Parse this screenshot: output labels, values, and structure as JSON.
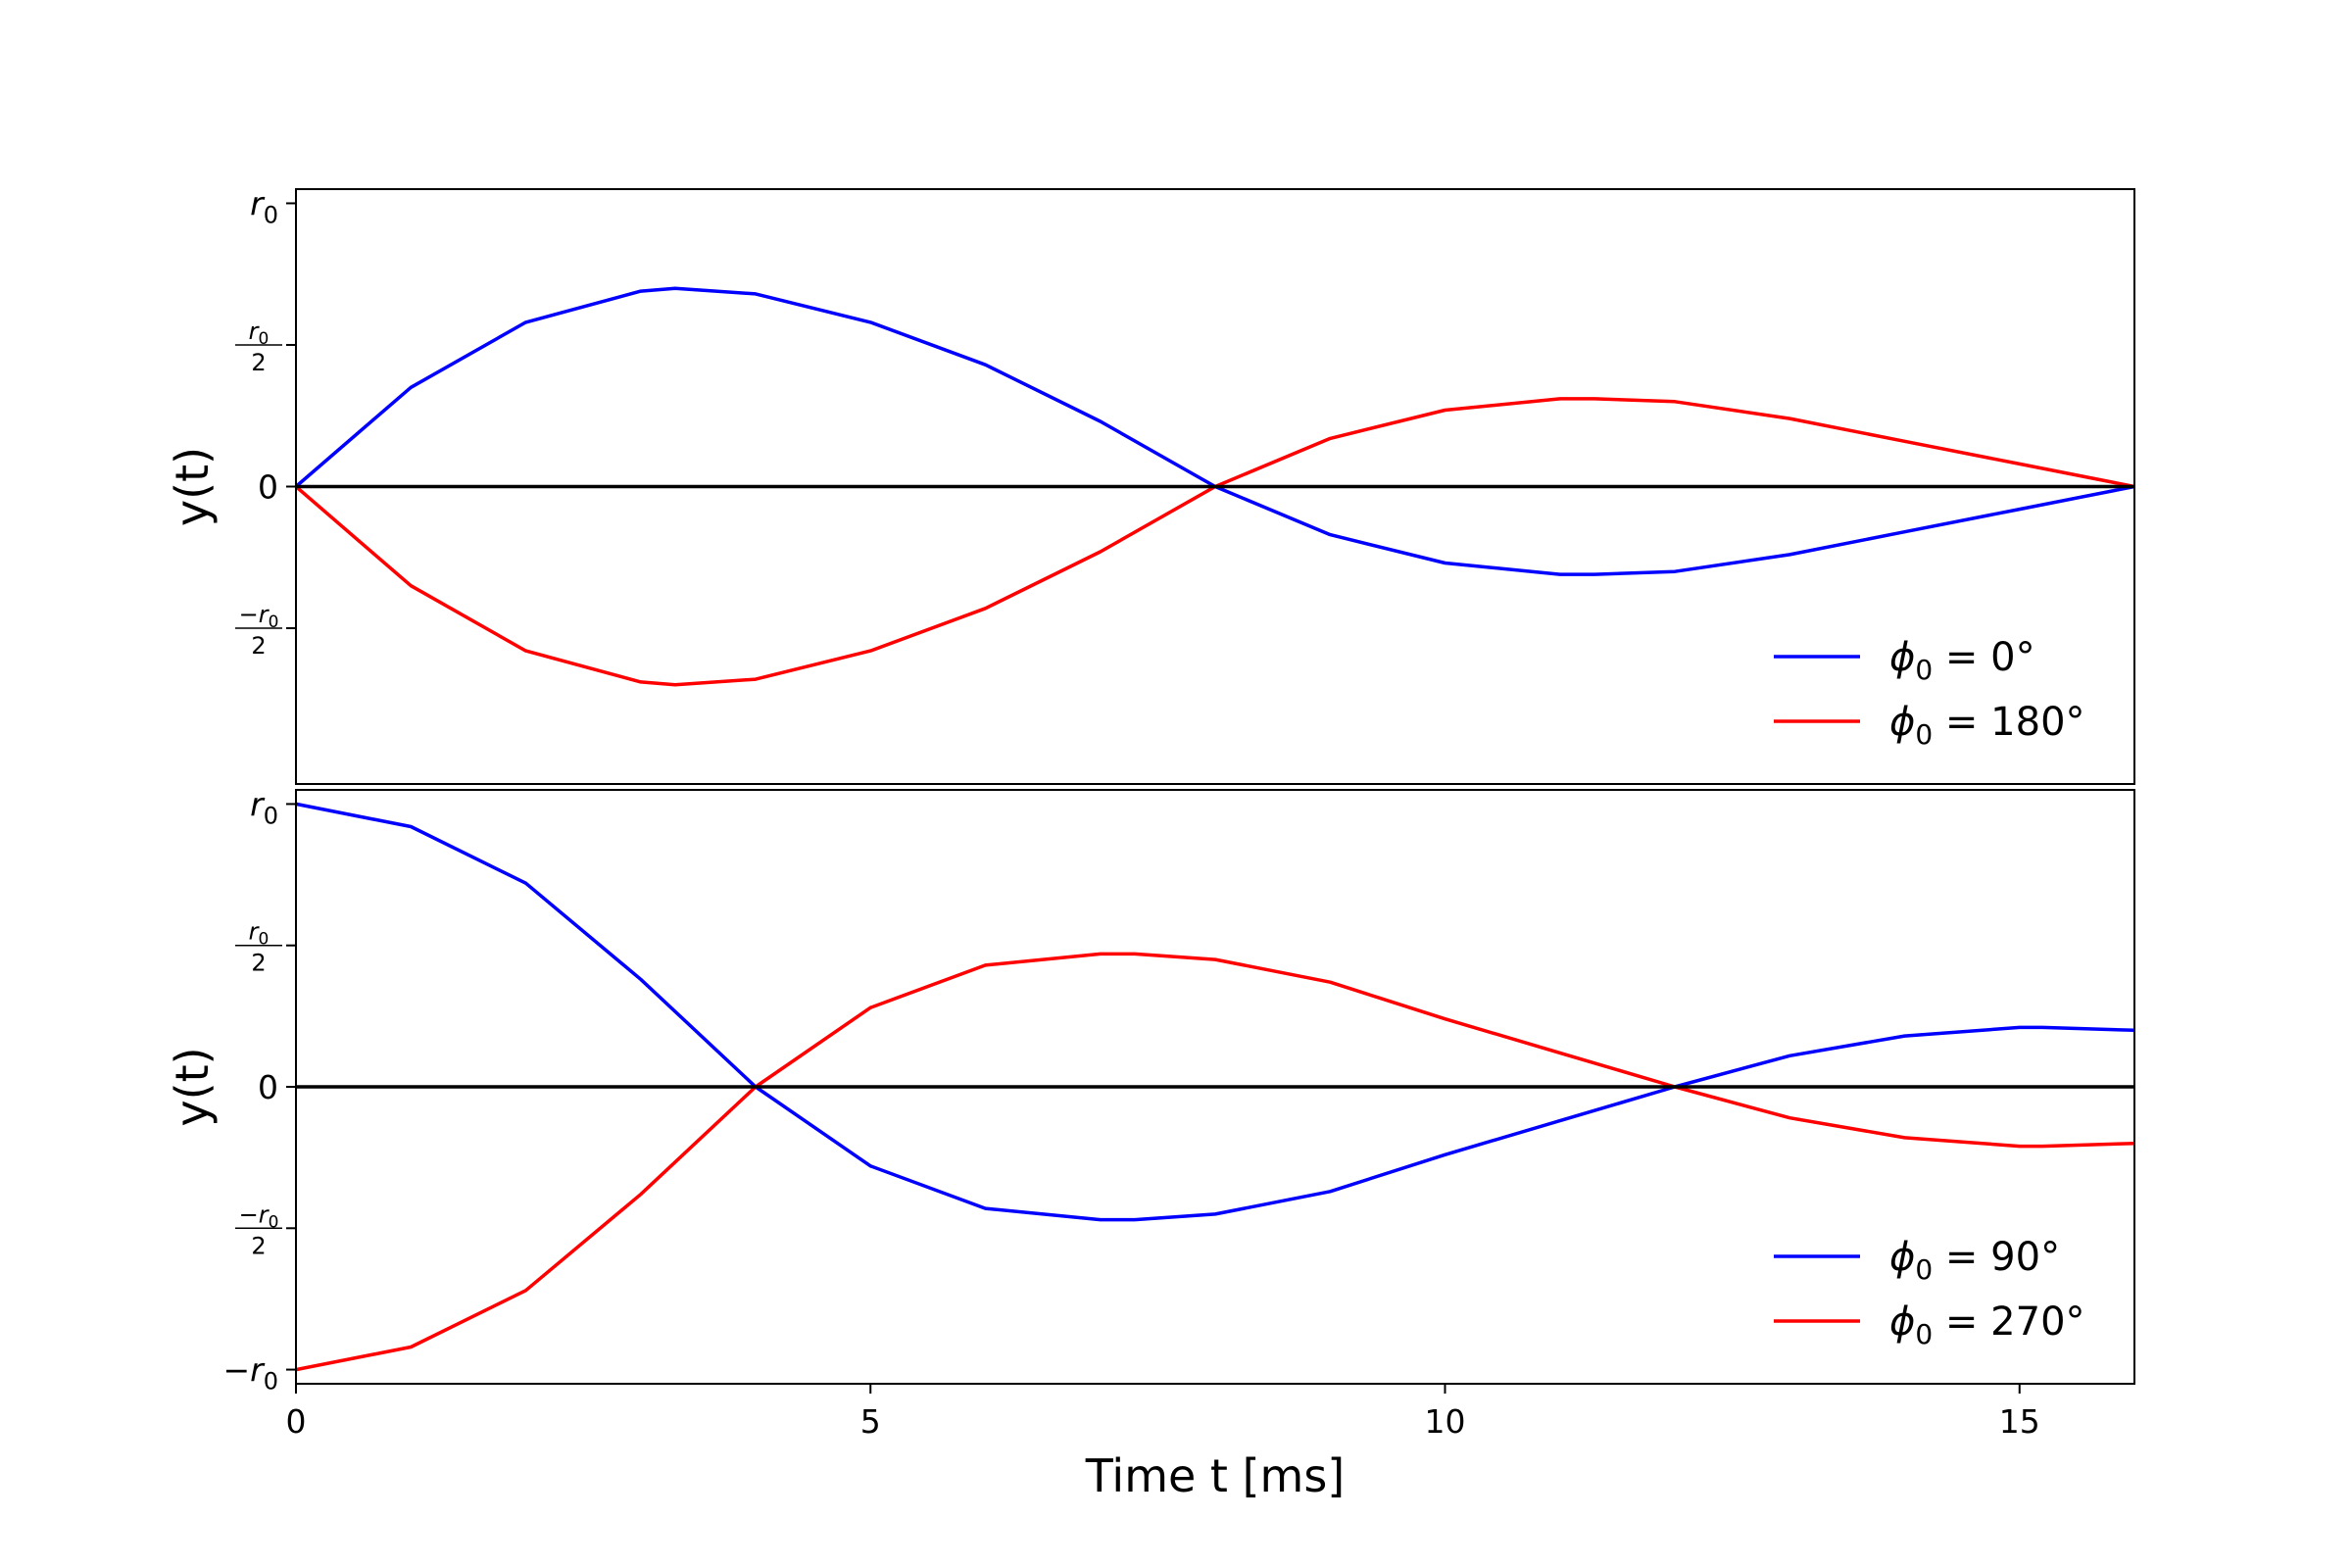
{
  "chart_data": [
    {
      "type": "line",
      "panel": "top",
      "ylabel": "y(t)",
      "xlabel": "",
      "xlim": [
        0,
        16
      ],
      "ylim": [
        -1.05,
        1.05
      ],
      "y_ticks": [
        {
          "value": 1,
          "base": "r",
          "sub": "0",
          "kind": "simple"
        },
        {
          "value": 0.5,
          "num_base": "r",
          "num_sub": "0",
          "den": "2",
          "kind": "frac"
        },
        {
          "value": 0,
          "text": "0",
          "kind": "text"
        },
        {
          "value": -0.5,
          "num_base": "−r",
          "num_sub": "0",
          "den": "2",
          "kind": "frac"
        }
      ],
      "zero_line": true,
      "legend_position": "lower-right",
      "series": [
        {
          "name_base": "ϕ",
          "name_sub": "0",
          "name_rest": " = 0°",
          "color": "#0000ff",
          "x": [
            0,
            1,
            2,
            3,
            3.3,
            4,
            5,
            6,
            7,
            8,
            9,
            10,
            11,
            11.3,
            12,
            13,
            14,
            15,
            16
          ],
          "y": [
            0,
            0.35,
            0.58,
            0.69,
            0.7,
            0.68,
            0.58,
            0.43,
            0.23,
            0,
            -0.17,
            -0.27,
            -0.31,
            -0.31,
            -0.3,
            -0.24,
            -0.16,
            -0.08,
            0
          ]
        },
        {
          "name_base": "ϕ",
          "name_sub": "0",
          "name_rest": " = 180°",
          "color": "#ff0000",
          "x": [
            0,
            1,
            2,
            3,
            3.3,
            4,
            5,
            6,
            7,
            8,
            9,
            10,
            11,
            11.3,
            12,
            13,
            14,
            15,
            16
          ],
          "y": [
            0,
            -0.35,
            -0.58,
            -0.69,
            -0.7,
            -0.68,
            -0.58,
            -0.43,
            -0.23,
            0,
            0.17,
            0.27,
            0.31,
            0.31,
            0.3,
            0.24,
            0.16,
            0.08,
            0
          ]
        }
      ]
    },
    {
      "type": "line",
      "panel": "bottom",
      "ylabel": "y(t)",
      "xlabel": "Time t [ms]",
      "xlim": [
        0,
        16
      ],
      "ylim": [
        -1.05,
        1.05
      ],
      "x_ticks": [
        0,
        5,
        10,
        15
      ],
      "y_ticks": [
        {
          "value": 1,
          "base": "r",
          "sub": "0",
          "kind": "simple"
        },
        {
          "value": 0.5,
          "num_base": "r",
          "num_sub": "0",
          "den": "2",
          "kind": "frac"
        },
        {
          "value": 0,
          "text": "0",
          "kind": "text"
        },
        {
          "value": -0.5,
          "num_base": "−r",
          "num_sub": "0",
          "den": "2",
          "kind": "frac"
        },
        {
          "value": -1,
          "base": "−r",
          "sub": "0",
          "kind": "simple"
        }
      ],
      "zero_line": true,
      "legend_position": "lower-right",
      "series": [
        {
          "name_base": "ϕ",
          "name_sub": "0",
          "name_rest": " = 90°",
          "color": "#0000ff",
          "x": [
            0,
            1,
            2,
            3,
            4,
            5,
            6,
            7,
            7.3,
            8,
            9,
            10,
            11,
            12,
            13,
            14,
            15,
            15.2,
            16
          ],
          "y": [
            1,
            0.92,
            0.72,
            0.38,
            0,
            -0.28,
            -0.43,
            -0.47,
            -0.47,
            -0.45,
            -0.37,
            -0.24,
            -0.12,
            0,
            0.11,
            0.18,
            0.21,
            0.21,
            0.2
          ]
        },
        {
          "name_base": "ϕ",
          "name_sub": "0",
          "name_rest": " = 270°",
          "color": "#ff0000",
          "x": [
            0,
            1,
            2,
            3,
            4,
            5,
            6,
            7,
            7.3,
            8,
            9,
            10,
            11,
            12,
            13,
            14,
            15,
            15.2,
            16
          ],
          "y": [
            -1,
            -0.92,
            -0.72,
            -0.38,
            0,
            0.28,
            0.43,
            0.47,
            0.47,
            0.45,
            0.37,
            0.24,
            0.12,
            0,
            -0.11,
            -0.18,
            -0.21,
            -0.21,
            -0.2
          ]
        }
      ]
    }
  ]
}
